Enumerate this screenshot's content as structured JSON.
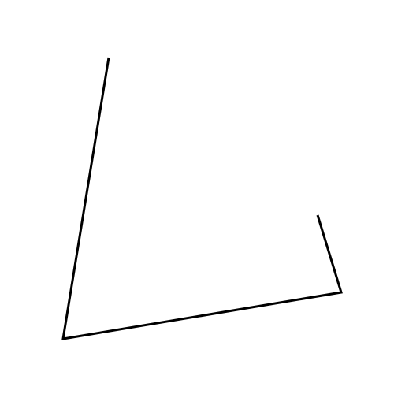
{
  "figure": {
    "background_color": "#ffffff",
    "stroke_color": "#000000",
    "shape": "open polyline",
    "segment_count": 3
  }
}
